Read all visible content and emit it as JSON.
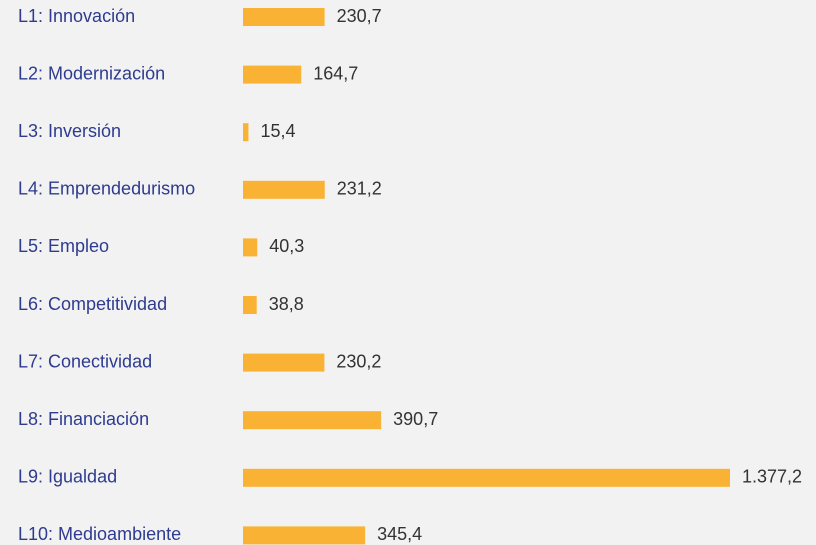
{
  "chart_data": {
    "type": "bar",
    "orientation": "horizontal",
    "categories": [
      "L1: Innovación",
      "L2: Modernización",
      "L3: Inversión",
      "L4: Emprendedurismo",
      "L5: Empleo",
      "L6: Competitividad",
      "L7: Conectividad",
      "L8: Financiación",
      "L9: Igualdad",
      "L10: Medioambiente"
    ],
    "values": [
      230.7,
      164.7,
      15.4,
      231.2,
      40.3,
      38.8,
      230.2,
      390.7,
      1377.2,
      345.4
    ],
    "value_labels": [
      "230,7",
      "164,7",
      "15,4",
      "231,2",
      "40,3",
      "38,8",
      "230,2",
      "390,7",
      "1.377,2",
      "345,4"
    ],
    "color": "#f9b233"
  }
}
